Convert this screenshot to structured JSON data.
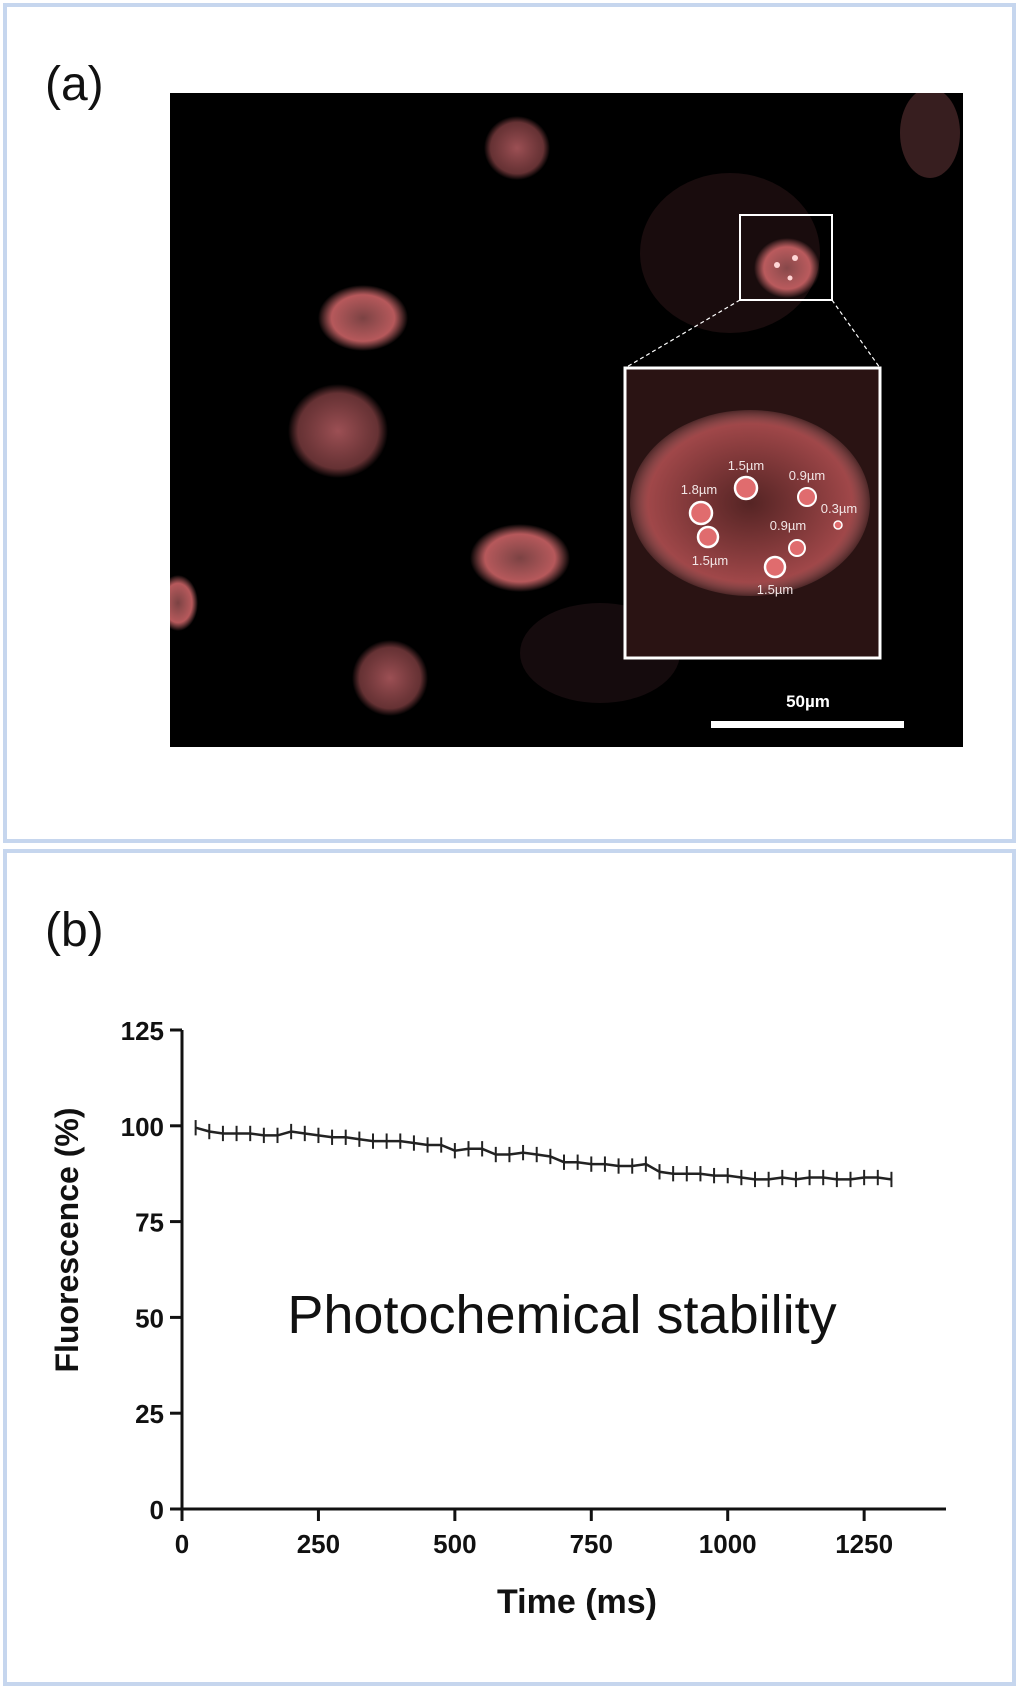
{
  "figure": {
    "panel_a_label": "(a)",
    "panel_b_label": "(b)"
  },
  "micrograph": {
    "scale_bar_label": "50µm",
    "colors": {
      "background": "#000000",
      "cell": "#e0787a",
      "inset_border": "#ffffff"
    },
    "inset_labels": [
      "1.5µm",
      "0.9µm",
      "1.8µm",
      "0.3µm",
      "0.9µm",
      "1.5µm",
      "1.5µm"
    ]
  },
  "chart_data": {
    "type": "line",
    "xlabel": "Time (ms)",
    "ylabel": "Fluorescence (%)",
    "annotation": "Photochemical stability",
    "xlim": [
      0,
      1400
    ],
    "ylim": [
      0,
      125
    ],
    "xticks": [
      0,
      250,
      500,
      750,
      1000,
      1250
    ],
    "yticks": [
      0,
      25,
      50,
      75,
      100,
      125
    ],
    "grid": false,
    "error_bars": true,
    "series": [
      {
        "x": [
          25,
          50,
          75,
          100,
          125,
          150,
          175,
          200,
          225,
          250,
          275,
          300,
          325,
          350,
          375,
          400,
          425,
          450,
          475,
          500,
          525,
          550,
          575,
          600,
          625,
          650,
          675,
          700,
          725,
          750,
          775,
          800,
          825,
          850,
          875,
          900,
          925,
          950,
          975,
          1000,
          1025,
          1050,
          1075,
          1100,
          1125,
          1150,
          1175,
          1200,
          1225,
          1250,
          1275,
          1300
        ],
        "y": [
          99.5,
          98.5,
          98,
          98,
          98,
          97.5,
          97.5,
          98.5,
          98,
          97.5,
          97,
          97,
          96.5,
          96,
          96,
          96,
          95.5,
          95,
          95,
          93.5,
          94,
          94,
          92.5,
          92.5,
          93,
          92.5,
          92,
          90.5,
          90.5,
          90,
          90,
          89.5,
          89.5,
          90,
          88,
          87.5,
          87.5,
          87.5,
          87,
          87,
          86.5,
          86,
          86,
          86.5,
          86,
          86.5,
          86.5,
          86,
          86,
          86.5,
          86.5,
          86
        ],
        "error": 2
      }
    ]
  }
}
